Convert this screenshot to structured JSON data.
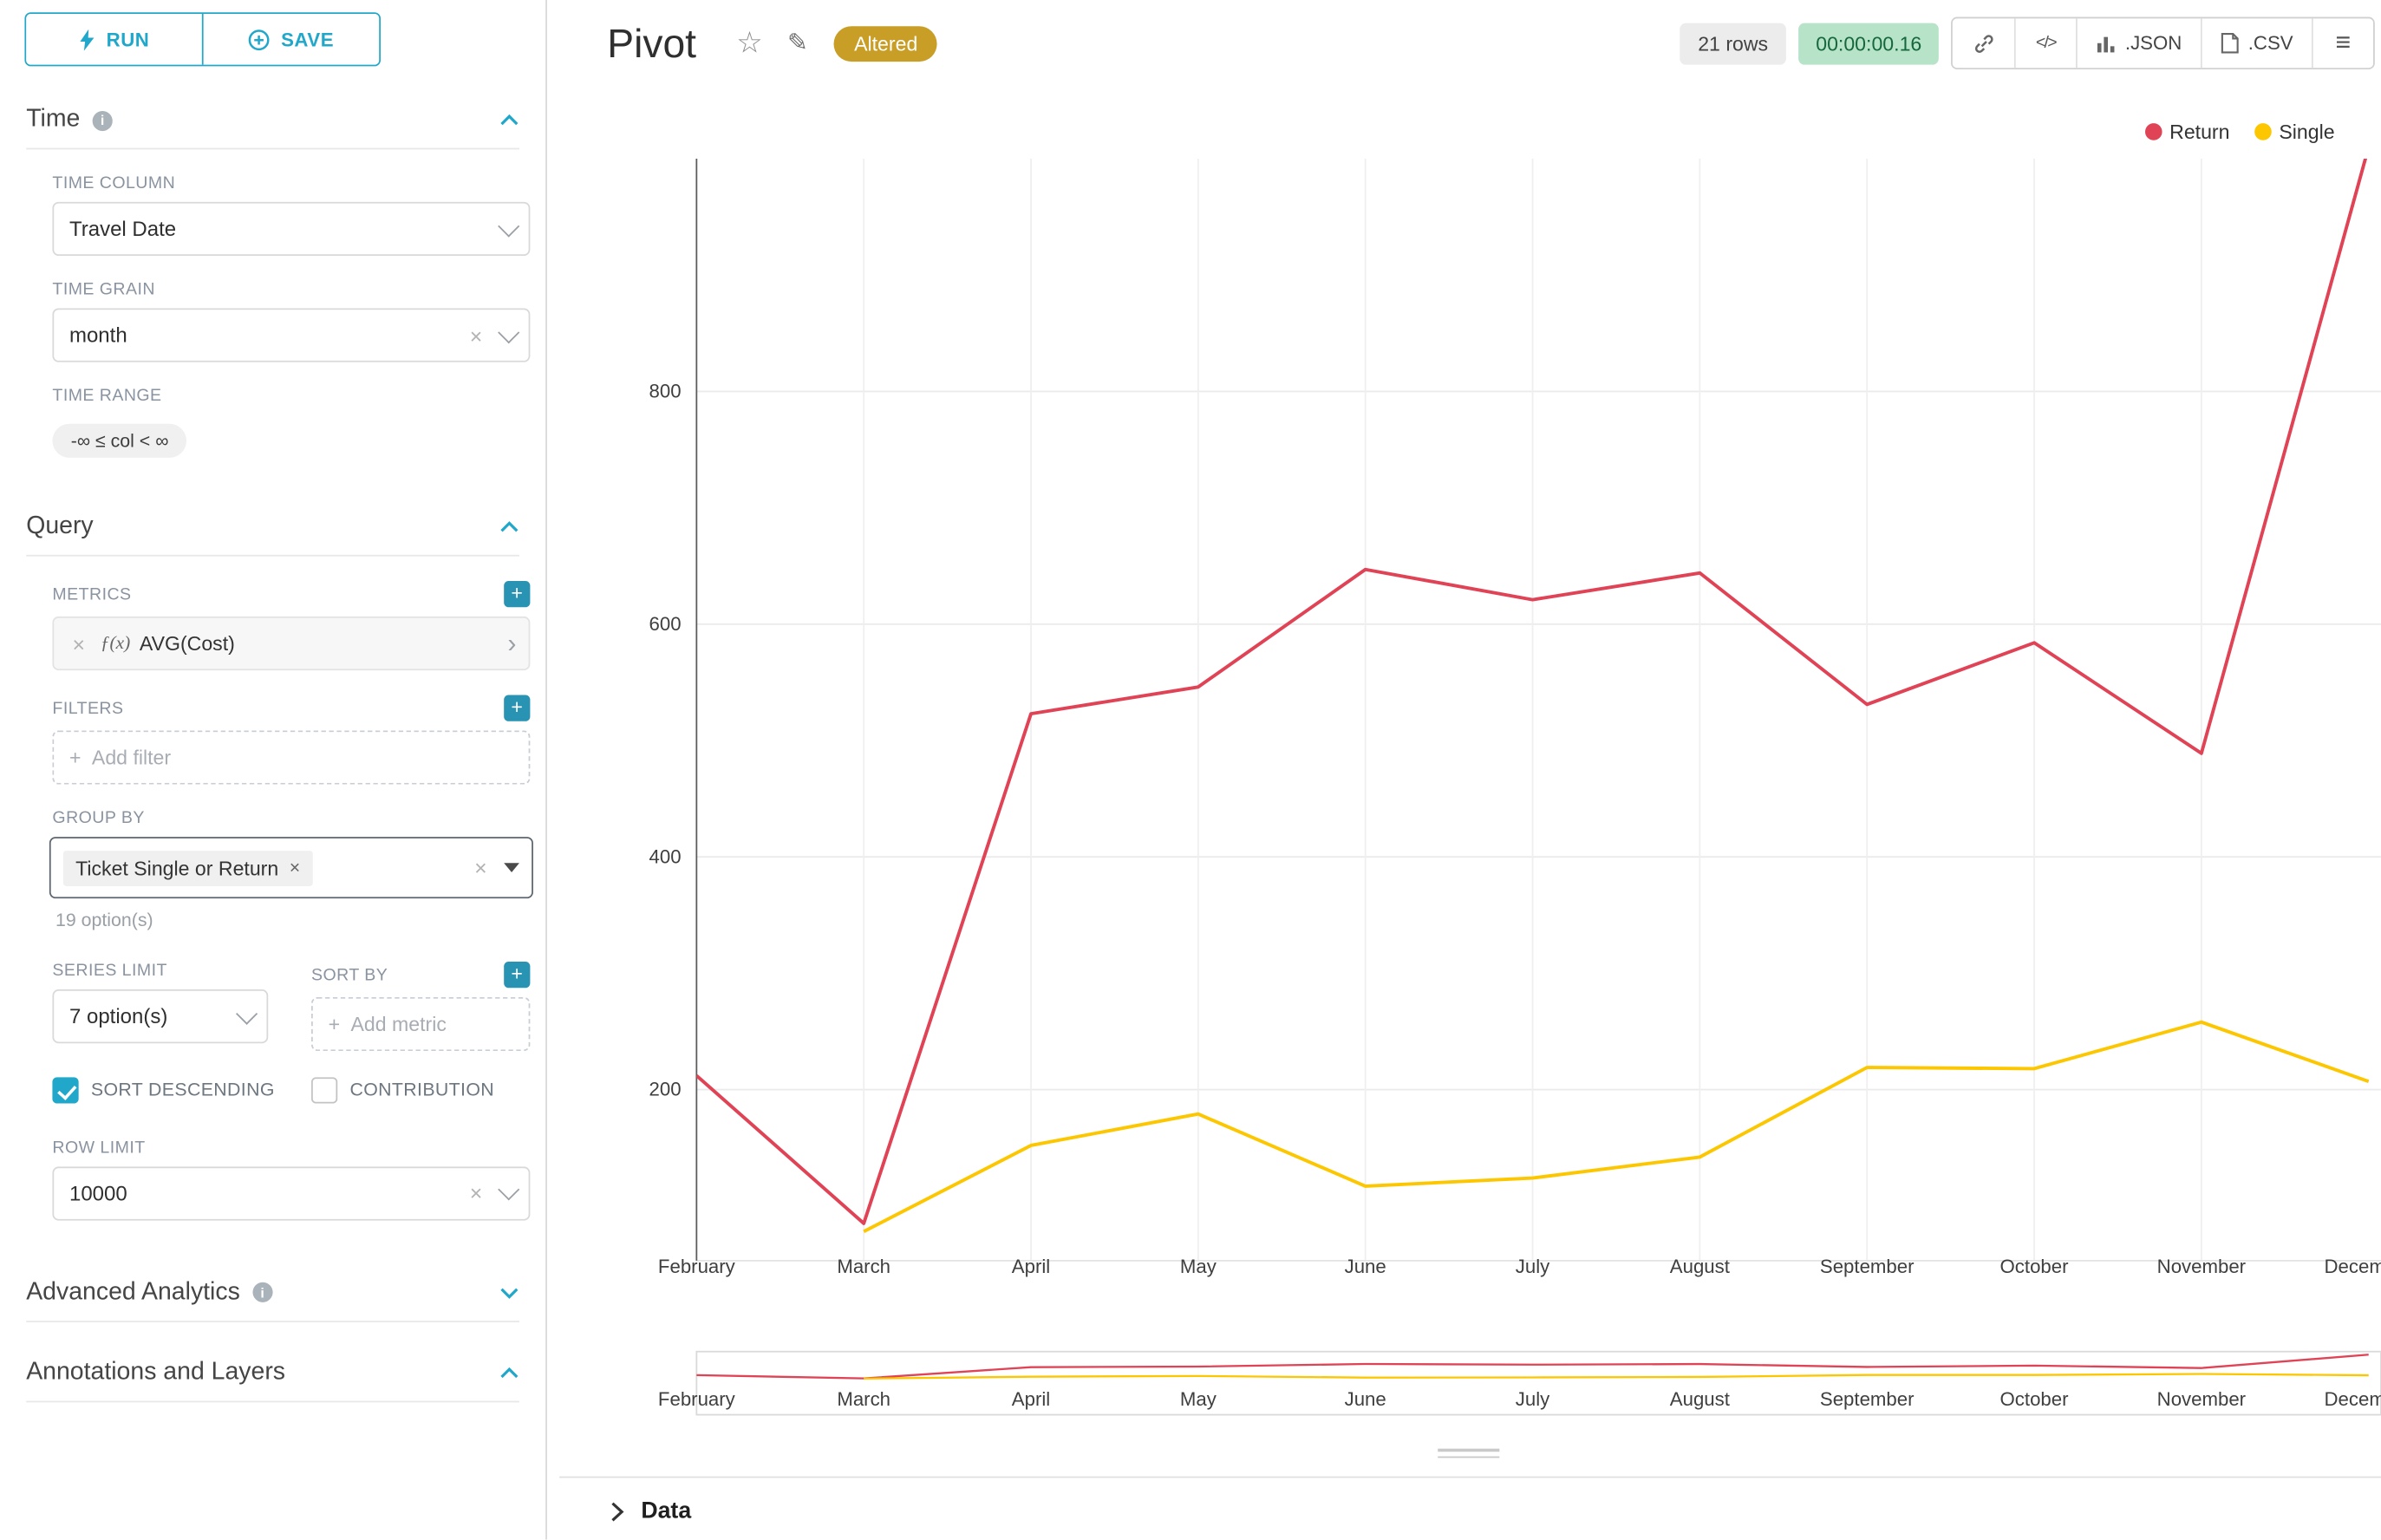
{
  "app": {
    "accent": "#20a7c9"
  },
  "icons": {
    "clear": "×",
    "plus": "+",
    "caret_right": "›",
    "star": "☆",
    "edit": "✎",
    "code": "</>",
    "menu": "≡"
  },
  "toolbar": {
    "run_label": "RUN",
    "save_label": "SAVE"
  },
  "panel": {
    "time": {
      "title": "Time",
      "time_column": {
        "label": "TIME COLUMN",
        "value": "Travel Date"
      },
      "time_grain": {
        "label": "TIME GRAIN",
        "value": "month"
      },
      "time_range": {
        "label": "TIME RANGE",
        "value": "-∞ ≤ col < ∞"
      }
    },
    "query": {
      "title": "Query",
      "metrics": {
        "label": "METRICS",
        "fx": "ƒ(x)",
        "value": "AVG(Cost)"
      },
      "filters": {
        "label": "FILTERS",
        "placeholder": "Add filter"
      },
      "group_by": {
        "label": "GROUP BY",
        "tag": "Ticket Single or Return",
        "hint": "19 option(s)"
      },
      "series_limit": {
        "label": "SERIES LIMIT",
        "value": "7 option(s)"
      },
      "sort_by": {
        "label": "SORT BY",
        "placeholder": "Add metric"
      },
      "sort_descending": {
        "label": "SORT DESCENDING",
        "checked": true
      },
      "contribution": {
        "label": "CONTRIBUTION",
        "checked": false
      },
      "row_limit": {
        "label": "ROW LIMIT",
        "value": "10000"
      }
    },
    "advanced_analytics": {
      "title": "Advanced Analytics"
    },
    "annotations": {
      "title": "Annotations and Layers"
    }
  },
  "header": {
    "title": "Pivot",
    "altered_badge": "Altered",
    "rows_badge": "21 rows",
    "timer": "00:00:00.16",
    "export_json": ".JSON",
    "export_csv": ".CSV"
  },
  "chart_data": {
    "type": "line",
    "title": "Pivot",
    "categories": [
      "February",
      "March",
      "April",
      "May",
      "June",
      "July",
      "August",
      "September",
      "October",
      "November",
      "December"
    ],
    "series": [
      {
        "name": "Return",
        "color": "#e04355",
        "values": [
          212,
          85,
          523,
          546,
          647,
          621,
          644,
          531,
          584,
          489,
          1010
        ]
      },
      {
        "name": "Single",
        "color": "#fcc700",
        "values": [
          null,
          78,
          152,
          179,
          117,
          124,
          142,
          219,
          218,
          258,
          207
        ]
      }
    ],
    "xlabel": "",
    "ylabel": "",
    "yticks": [
      200,
      400,
      600,
      800
    ],
    "ylim": [
      53,
      1000
    ],
    "grid": true,
    "legend_position": "top-right",
    "has_brush_minimap": true
  },
  "data_panel": {
    "label": "Data"
  }
}
